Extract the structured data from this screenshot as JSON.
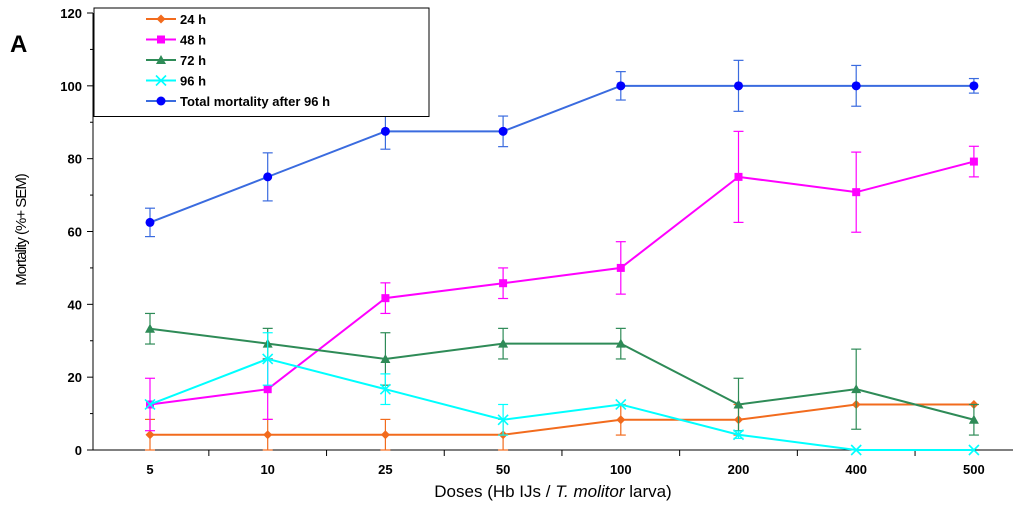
{
  "panel_label": "A",
  "chart_data": {
    "type": "line",
    "title": "",
    "categories": [
      "5",
      "10",
      "25",
      "50",
      "100",
      "200",
      "400",
      "500"
    ],
    "xlabel_parts": [
      "Doses (Hb IJs / ",
      "T. molitor",
      " larva)"
    ],
    "ylabel": "Mortality (%+ SEM)",
    "ylim": [
      0,
      120
    ],
    "yticks": [
      0,
      20,
      40,
      60,
      80,
      100,
      120
    ],
    "grid": false,
    "legend_position": "top-left",
    "series": [
      {
        "name": "24 h",
        "color": "#F26B1D",
        "marker": "diamond",
        "values": [
          4.2,
          4.2,
          4.2,
          4.2,
          8.3,
          8.3,
          12.5,
          12.5
        ],
        "errors": [
          4.2,
          4.2,
          4.2,
          4.2,
          4.2,
          4.2,
          0,
          0
        ]
      },
      {
        "name": "48 h",
        "color": "#FF00FF",
        "marker": "square",
        "values": [
          12.5,
          16.7,
          41.7,
          45.8,
          50,
          75,
          70.8,
          79.2
        ],
        "errors": [
          7.2,
          8.3,
          4.2,
          4.2,
          7.2,
          12.5,
          11.0,
          4.2
        ]
      },
      {
        "name": "72 h",
        "color": "#2E8B57",
        "marker": "triangle",
        "values": [
          33.3,
          29.2,
          25,
          29.2,
          29.2,
          12.5,
          16.7,
          8.3
        ],
        "errors": [
          4.2,
          4.2,
          7.2,
          4.2,
          4.2,
          7.2,
          11.0,
          4.2
        ]
      },
      {
        "name": "96 h",
        "color": "#00FFFF",
        "marker": "x",
        "values": [
          12.5,
          25,
          16.7,
          8.3,
          12.5,
          4.2,
          0,
          0
        ],
        "errors": [
          0,
          7.2,
          4.2,
          4.2,
          0,
          1.0,
          0,
          0
        ]
      },
      {
        "name": "Total mortality after 96 h",
        "color": "#0000FF",
        "line_color": "#3A6BDF",
        "marker": "circle",
        "values": [
          62.5,
          75,
          87.5,
          87.5,
          100,
          100,
          100,
          100
        ],
        "errors": [
          3.9,
          6.6,
          4.9,
          4.2,
          3.9,
          7.0,
          5.6,
          2.0
        ]
      }
    ]
  }
}
